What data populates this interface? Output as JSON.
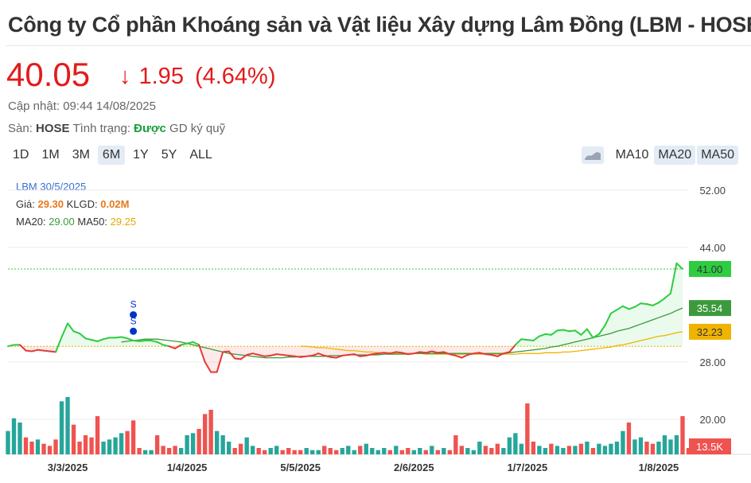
{
  "header": {
    "title": "Công ty Cổ phần Khoáng sản và Vật liệu Xây dựng Lâm Đồng (LBM - HOSE)",
    "price": "40.05",
    "arrow": "↓",
    "change": "1.95",
    "change_pct": "(4.64%)",
    "updated_label": "Cập nhật:",
    "updated_value": "09:44 14/08/2025",
    "exchange_label": "Sàn:",
    "exchange_value": "HOSE",
    "status_label": "Tình trạng:",
    "status_value": "Được",
    "margin_text": "GD ký quỹ"
  },
  "ranges": [
    {
      "label": "1D",
      "active": false
    },
    {
      "label": "1M",
      "active": false
    },
    {
      "label": "3M",
      "active": false
    },
    {
      "label": "6M",
      "active": true
    },
    {
      "label": "1Y",
      "active": false
    },
    {
      "label": "5Y",
      "active": false
    },
    {
      "label": "ALL",
      "active": false
    }
  ],
  "ma_buttons": [
    {
      "label": "MA10",
      "active": false
    },
    {
      "label": "MA20",
      "active": true
    },
    {
      "label": "MA50",
      "active": true
    }
  ],
  "info_box": {
    "date_label": "LBM 30/5/2025",
    "price_label": "Giá:",
    "price_value": "29.30",
    "vol_label": "KLGD:",
    "vol_value": "0.02M",
    "ma20_label": "MA20:",
    "ma20_value": "29.00",
    "ma50_label": "MA50:",
    "ma50_value": "29.25"
  },
  "colors": {
    "up": "#2ecc40",
    "down": "#e53935",
    "ma20": "#3c9a3c",
    "ma50": "#f0b400",
    "vol_up": "#26a69a",
    "vol_down": "#ef5350",
    "ref_line": "#f0b400",
    "signal": "#0033cc"
  },
  "chart_data": {
    "type": "line",
    "y_axis": {
      "ticks": [
        "52.00",
        "44.00",
        "28.00",
        "20.00"
      ],
      "range": [
        20,
        52
      ]
    },
    "x_ticks": [
      {
        "label": "3/3/2025",
        "index": 10
      },
      {
        "label": "1/4/2025",
        "index": 30
      },
      {
        "label": "5/5/2025",
        "index": 49
      },
      {
        "label": "2/6/2025",
        "index": 68
      },
      {
        "label": "1/7/2025",
        "index": 87
      },
      {
        "label": "1/8/2025",
        "index": 109
      }
    ],
    "reference_price": 30.2,
    "price_badges": [
      {
        "label": "41.00",
        "value": 41.0,
        "color": "#2ecc40",
        "text_color": "#333"
      },
      {
        "label": "35.54",
        "value": 35.54,
        "color": "#3c9a3c",
        "text_color": "#ffffff"
      },
      {
        "label": "32.23",
        "value": 32.23,
        "color": "#f0b400",
        "text_color": "#333"
      }
    ],
    "volume_badge": "13.5K",
    "signals": [
      {
        "index": 21,
        "value": 34.6,
        "label": "S"
      },
      {
        "index": 21,
        "value": 32.3,
        "label": "S"
      }
    ],
    "price": [
      30.2,
      30.4,
      30.4,
      29.6,
      29.5,
      29.7,
      29.6,
      29.5,
      29.4,
      31.5,
      33.4,
      32.3,
      32.0,
      31.3,
      31.1,
      30.9,
      31.2,
      31.4,
      31.4,
      31.5,
      31.3,
      31.0,
      30.9,
      31.0,
      31.0,
      30.8,
      30.4,
      30.2,
      29.9,
      30.4,
      30.6,
      30.8,
      30.4,
      28.0,
      26.6,
      26.6,
      29.4,
      29.5,
      28.5,
      28.4,
      29.0,
      29.2,
      29.0,
      28.8,
      28.9,
      29.1,
      29.0,
      28.9,
      28.8,
      28.7,
      28.8,
      28.9,
      29.2,
      28.9,
      28.7,
      28.6,
      28.9,
      29.0,
      29.1,
      28.8,
      28.9,
      29.1,
      29.2,
      29.3,
      29.2,
      29.4,
      29.3,
      29.1,
      29.2,
      29.4,
      29.3,
      29.5,
      29.3,
      29.4,
      29.1,
      28.9,
      28.6,
      29.0,
      29.2,
      29.3,
      29.1,
      29.0,
      28.8,
      29.2,
      29.4,
      30.4,
      31.2,
      31.1,
      31.0,
      31.6,
      31.9,
      31.8,
      32.4,
      32.5,
      32.3,
      32.4,
      31.8,
      32.6,
      31.4,
      31.9,
      33.1,
      34.8,
      35.3,
      35.8,
      35.4,
      35.7,
      36.2,
      36.1,
      35.9,
      36.3,
      36.9,
      37.6,
      41.8,
      41.0
    ],
    "ma20": [
      null,
      null,
      null,
      null,
      null,
      null,
      null,
      null,
      null,
      null,
      null,
      null,
      null,
      null,
      null,
      null,
      null,
      null,
      null,
      30.8,
      30.9,
      31.0,
      31.1,
      31.2,
      31.2,
      31.2,
      31.1,
      31.0,
      30.9,
      30.8,
      30.6,
      30.4,
      30.2,
      30.0,
      29.8,
      29.6,
      29.4,
      29.2,
      29.1,
      29.0,
      28.9,
      28.8,
      28.7,
      28.6,
      28.6,
      28.6,
      28.6,
      28.7,
      28.7,
      28.8,
      28.8,
      28.8,
      28.8,
      28.8,
      28.9,
      28.9,
      28.9,
      29.0,
      29.0,
      29.0,
      29.0,
      29.0,
      29.0,
      29.1,
      29.1,
      29.1,
      29.1,
      29.1,
      29.2,
      29.2,
      29.2,
      29.2,
      29.2,
      29.2,
      29.2,
      29.2,
      29.2,
      29.2,
      29.2,
      29.2,
      29.2,
      29.2,
      29.2,
      29.2,
      29.3,
      29.4,
      29.5,
      29.6,
      29.7,
      29.8,
      29.9,
      30.1,
      30.2,
      30.4,
      30.6,
      30.8,
      31.0,
      31.2,
      31.4,
      31.6,
      31.8,
      32.0,
      32.3,
      32.5,
      32.7,
      33.0,
      33.3,
      33.6,
      33.9,
      34.2,
      34.5,
      34.8,
      35.2,
      35.54
    ],
    "ma50": [
      null,
      null,
      null,
      null,
      null,
      null,
      null,
      null,
      null,
      null,
      null,
      null,
      null,
      null,
      null,
      null,
      null,
      null,
      null,
      null,
      null,
      null,
      null,
      null,
      null,
      null,
      null,
      null,
      null,
      null,
      null,
      null,
      null,
      null,
      null,
      null,
      null,
      null,
      null,
      null,
      null,
      null,
      null,
      null,
      null,
      null,
      null,
      null,
      null,
      30.2,
      30.2,
      30.1,
      30.0,
      30.0,
      29.9,
      29.8,
      29.7,
      29.6,
      29.6,
      29.5,
      29.4,
      29.4,
      29.3,
      29.3,
      29.3,
      29.2,
      29.2,
      29.2,
      29.2,
      29.2,
      29.1,
      29.1,
      29.1,
      29.1,
      29.1,
      29.1,
      29.1,
      29.1,
      29.1,
      29.1,
      29.1,
      29.1,
      29.1,
      29.1,
      29.1,
      29.1,
      29.2,
      29.2,
      29.2,
      29.2,
      29.3,
      29.3,
      29.3,
      29.4,
      29.4,
      29.5,
      29.6,
      29.7,
      29.8,
      29.9,
      30.0,
      30.1,
      30.3,
      30.4,
      30.6,
      30.8,
      31.0,
      31.2,
      31.4,
      31.6,
      31.7,
      31.9,
      32.1,
      32.23
    ],
    "volume": [
      0.55,
      0.85,
      0.75,
      0.4,
      0.3,
      0.35,
      0.25,
      0.2,
      0.35,
      1.25,
      1.35,
      0.7,
      0.3,
      0.45,
      0.4,
      0.9,
      0.3,
      0.35,
      0.4,
      0.5,
      0.55,
      0.8,
      0.15,
      0.1,
      0.1,
      0.45,
      0.2,
      0.15,
      0.2,
      0.15,
      0.45,
      0.5,
      0.6,
      0.95,
      1.05,
      0.55,
      0.45,
      0.3,
      0.15,
      0.25,
      0.4,
      0.2,
      0.15,
      0.1,
      0.15,
      0.2,
      0.1,
      0.15,
      0.1,
      0.1,
      0.15,
      0.1,
      0.1,
      0.2,
      0.15,
      0.1,
      0.15,
      0.2,
      0.1,
      0.2,
      0.25,
      0.15,
      0.1,
      0.15,
      0.1,
      0.2,
      0.1,
      0.15,
      0.1,
      0.15,
      0.1,
      0.2,
      0.1,
      0.15,
      0.1,
      0.45,
      0.2,
      0.15,
      0.1,
      0.3,
      0.2,
      0.15,
      0.25,
      0.15,
      0.4,
      0.5,
      0.25,
      1.2,
      0.3,
      0.2,
      0.15,
      0.25,
      0.2,
      0.15,
      0.2,
      0.2,
      0.25,
      0.3,
      0.15,
      0.25,
      0.2,
      0.25,
      0.3,
      0.55,
      0.75,
      0.35,
      0.4,
      0.3,
      0.25,
      0.3,
      0.45,
      0.35,
      0.45,
      0.9,
      0.15
    ]
  }
}
